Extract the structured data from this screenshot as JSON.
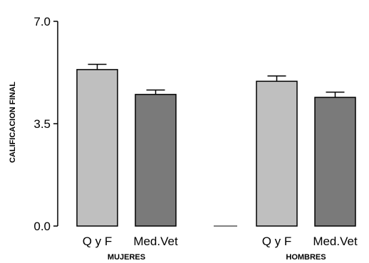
{
  "chart_data": {
    "type": "bar",
    "title": "",
    "xlabel": "",
    "ylabel": "CALIFICACION FINAL",
    "ylim": [
      0,
      7.0
    ],
    "yticks": [
      "0.0",
      "3.5",
      "7.0"
    ],
    "grid": false,
    "groups": [
      {
        "label": "MUJERES",
        "bars": [
          {
            "category": "Q y F",
            "value": 5.35,
            "error": 0.18,
            "color": "#bfbfbf"
          },
          {
            "category": "Med.Vet",
            "value": 4.5,
            "error": 0.15,
            "color": "#7a7a7a"
          }
        ]
      },
      {
        "label": "HOMBRES",
        "bars": [
          {
            "category": "Q y F",
            "value": 4.95,
            "error": 0.18,
            "color": "#bfbfbf"
          },
          {
            "category": "Med.Vet",
            "value": 4.4,
            "error": 0.18,
            "color": "#7a7a7a"
          }
        ]
      }
    ]
  }
}
